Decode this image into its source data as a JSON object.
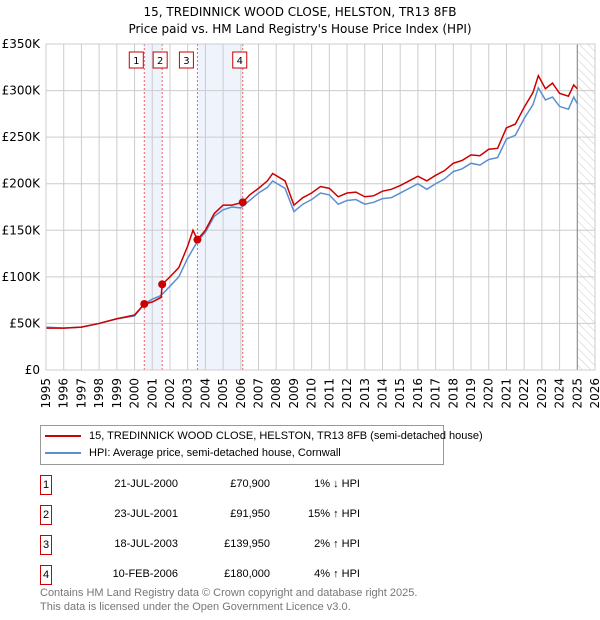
{
  "chart_data": {
    "type": "line",
    "title": "15, TREDINNICK WOOD CLOSE, HELSTON, TR13 8FB",
    "subtitle": "Price paid vs. HM Land Registry's House Price Index (HPI)",
    "xlim": [
      1995,
      2026
    ],
    "ylim": [
      0,
      350000
    ],
    "y_ticks": [
      {
        "v": 0,
        "label": "£0"
      },
      {
        "v": 50000,
        "label": "£50K"
      },
      {
        "v": 100000,
        "label": "£100K"
      },
      {
        "v": 150000,
        "label": "£150K"
      },
      {
        "v": 200000,
        "label": "£200K"
      },
      {
        "v": 250000,
        "label": "£250K"
      },
      {
        "v": 300000,
        "label": "£300K"
      },
      {
        "v": 350000,
        "label": "£350K"
      }
    ],
    "x_ticks": [
      "1995",
      "1996",
      "1997",
      "1998",
      "1999",
      "2000",
      "2001",
      "2002",
      "2003",
      "2004",
      "2005",
      "2006",
      "2007",
      "2008",
      "2009",
      "2010",
      "2011",
      "2012",
      "2013",
      "2014",
      "2015",
      "2016",
      "2017",
      "2018",
      "2019",
      "2020",
      "2021",
      "2022",
      "2023",
      "2024",
      "2025",
      "2026"
    ],
    "grid": true,
    "forecast_hatch_from": 2025,
    "shaded_ranges": [
      [
        2000.55,
        2001.56
      ],
      [
        2003.55,
        2006.11
      ]
    ],
    "series": [
      {
        "name": "15, TREDINNICK WOOD CLOSE, HELSTON, TR13 8FB (semi-detached house)",
        "color": "#cc0000",
        "x": [
          1995,
          1996,
          1997,
          1998,
          1999,
          2000,
          2000.55,
          2001,
          2001.5,
          2001.56,
          2002,
          2002.5,
          2003,
          2003.3,
          2003.55,
          2004,
          2004.5,
          2005,
          2005.5,
          2006.11,
          2006.5,
          2007,
          2007.5,
          2007.8,
          2008.5,
          2009,
          2009.5,
          2010,
          2010.5,
          2011,
          2011.5,
          2012,
          2012.5,
          2013,
          2013.5,
          2014,
          2014.5,
          2015,
          2015.5,
          2016,
          2016.5,
          2017,
          2017.5,
          2018,
          2018.5,
          2019,
          2019.5,
          2020,
          2020.5,
          2021,
          2021.5,
          2022,
          2022.5,
          2022.8,
          2023.2,
          2023.6,
          2024,
          2024.5,
          2024.8,
          2025
        ],
        "y": [
          45,
          45,
          46,
          50,
          55,
          59,
          70.9,
          73,
          78,
          91.95,
          100,
          110,
          133,
          150,
          139.95,
          150,
          168,
          177,
          177,
          180,
          188,
          195,
          203,
          211,
          203,
          177,
          185,
          190,
          197,
          195,
          186,
          190,
          191,
          186,
          187,
          192,
          194,
          198,
          203,
          208,
          203,
          209,
          214,
          222,
          225,
          231,
          230,
          237,
          238,
          260,
          264,
          282,
          298,
          316,
          302,
          308,
          297,
          294,
          306,
          302
        ]
      },
      {
        "name": "HPI: Average price, semi-detached house, Cornwall",
        "color": "#5b8fd0",
        "x": [
          1995,
          1996,
          1997,
          1998,
          1999,
          2000,
          2000.55,
          2001,
          2001.5,
          2002,
          2002.5,
          2003,
          2003.55,
          2004,
          2004.5,
          2005,
          2005.5,
          2006,
          2006.5,
          2007,
          2007.5,
          2007.8,
          2008.5,
          2009,
          2009.5,
          2010,
          2010.5,
          2011,
          2011.5,
          2012,
          2012.5,
          2013,
          2013.5,
          2014,
          2014.5,
          2015,
          2015.5,
          2016,
          2016.5,
          2017,
          2017.5,
          2018,
          2018.5,
          2019,
          2019.5,
          2020,
          2020.5,
          2021,
          2021.5,
          2022,
          2022.5,
          2022.8,
          2023.2,
          2023.6,
          2024,
          2024.5,
          2024.8,
          2025
        ],
        "y": [
          46,
          45,
          46,
          50,
          55,
          58,
          71,
          76,
          80,
          90,
          100,
          120,
          138,
          148,
          165,
          172,
          175,
          174,
          182,
          190,
          196,
          203,
          195,
          170,
          178,
          183,
          190,
          188,
          178,
          182,
          183,
          178,
          180,
          184,
          185,
          190,
          195,
          200,
          194,
          200,
          205,
          213,
          216,
          222,
          220,
          226,
          228,
          248,
          252,
          270,
          285,
          303,
          290,
          293,
          283,
          280,
          293,
          286
        ]
      }
    ],
    "y_units": "thousands GBP",
    "sales": [
      {
        "n": "1",
        "x": 2000.55,
        "y": 70.9
      },
      {
        "n": "2",
        "x": 2001.56,
        "y": 91.95
      },
      {
        "n": "3",
        "x": 2003.55,
        "y": 139.95
      },
      {
        "n": "4",
        "x": 2006.11,
        "y": 180
      }
    ]
  },
  "legend": {
    "red": "15, TREDINNICK WOOD CLOSE, HELSTON, TR13 8FB (semi-detached house)",
    "blue": "HPI: Average price, semi-detached house, Cornwall"
  },
  "table": [
    {
      "n": "1",
      "date": "21-JUL-2000",
      "price": "£70,900",
      "hpi": "1% ↓ HPI"
    },
    {
      "n": "2",
      "date": "23-JUL-2001",
      "price": "£91,950",
      "hpi": "15% ↑ HPI"
    },
    {
      "n": "3",
      "date": "18-JUL-2003",
      "price": "£139,950",
      "hpi": "2% ↑ HPI"
    },
    {
      "n": "4",
      "date": "10-FEB-2006",
      "price": "£180,000",
      "hpi": "4% ↑ HPI"
    }
  ],
  "footer": [
    "Contains HM Land Registry data © Crown copyright and database right 2025.",
    "This data is licensed under the Open Government Licence v3.0."
  ]
}
